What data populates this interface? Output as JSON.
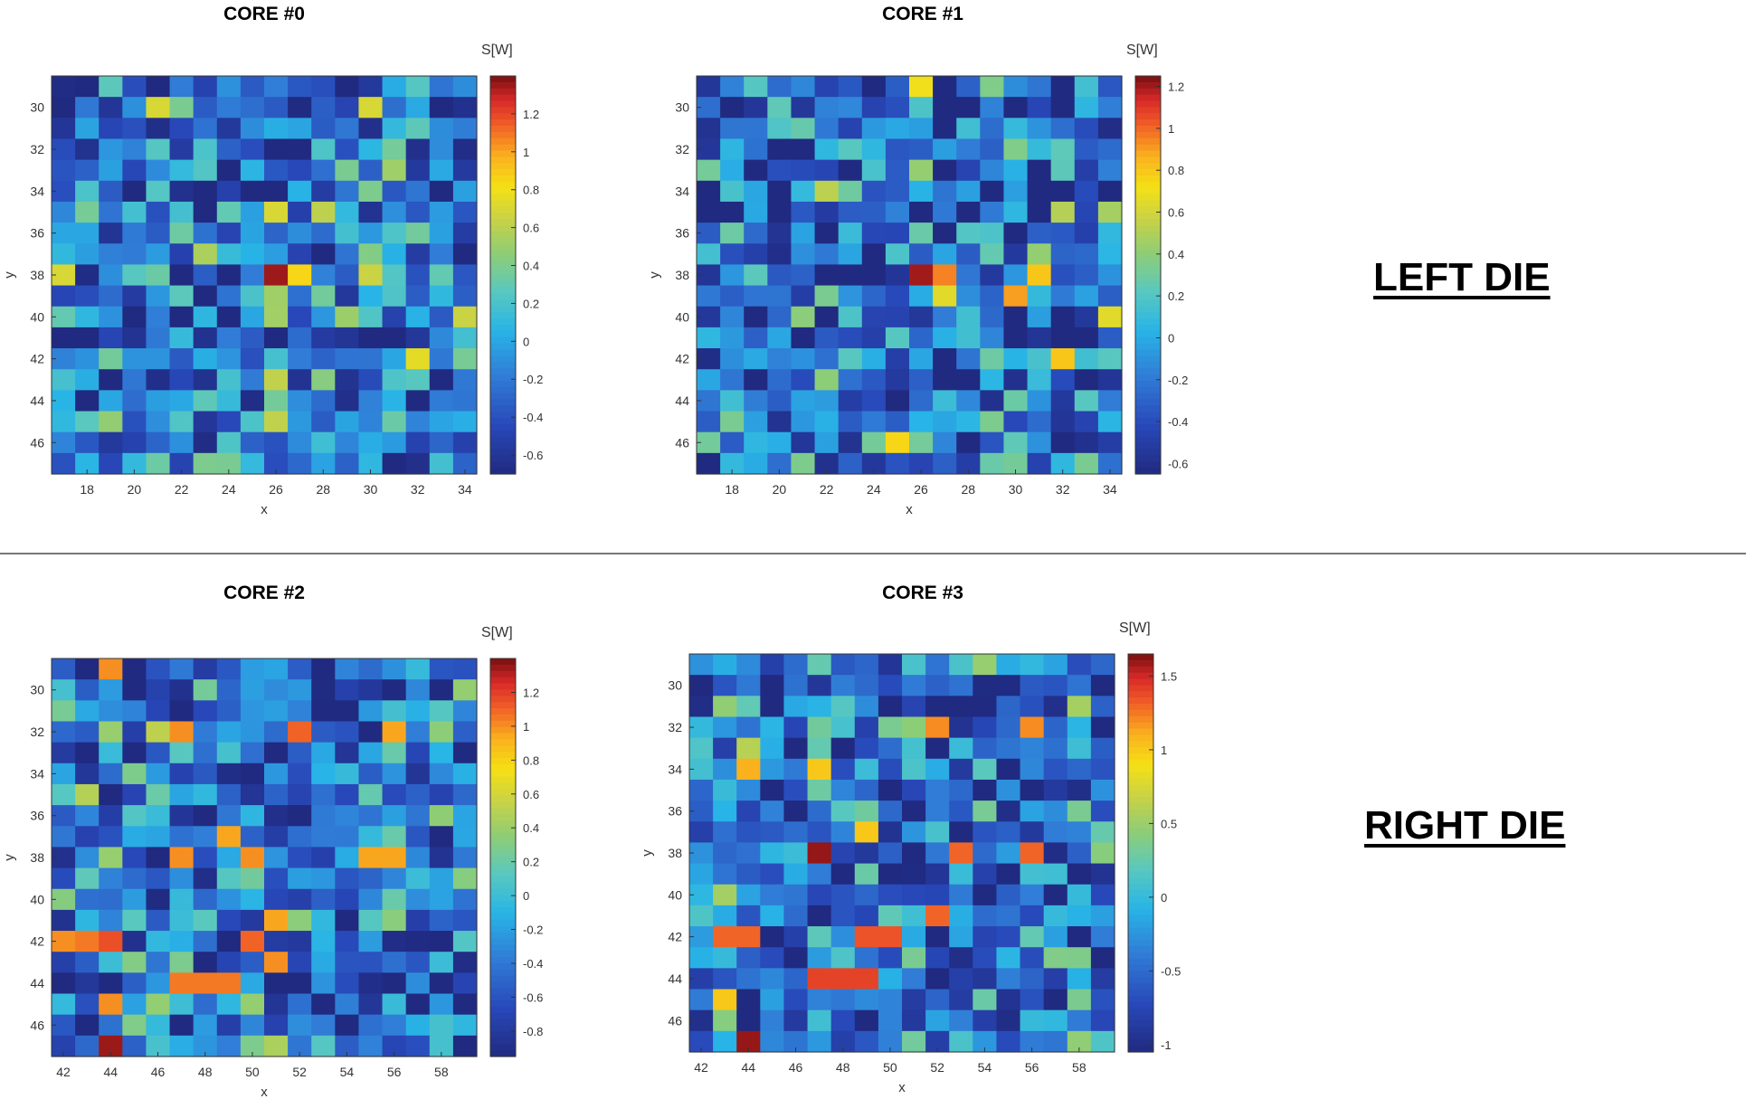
{
  "figure": {
    "sections": [
      {
        "label": "LEFT DIE",
        "cores": [
          "CORE #0",
          "CORE #1"
        ]
      },
      {
        "label": "RIGHT DIE",
        "cores": [
          "CORE #2",
          "CORE #3"
        ]
      }
    ]
  },
  "chart_data": [
    {
      "type": "heatmap",
      "title": "CORE #0",
      "xlabel": "x",
      "ylabel": "y",
      "colorbar_label": "S[W]",
      "x_range": [
        16.5,
        34.5
      ],
      "y_range": [
        28.5,
        47.5
      ],
      "xticks": [
        18,
        20,
        22,
        24,
        26,
        28,
        30,
        32,
        34
      ],
      "yticks": [
        30,
        32,
        34,
        36,
        38,
        40,
        42,
        44,
        46
      ],
      "clim": [
        -0.7,
        1.4
      ],
      "cbar_ticks": [
        -0.6,
        -0.4,
        -0.2,
        0,
        0.2,
        0.4,
        0.6,
        0.8,
        1,
        1.2
      ],
      "cbar_tick_labels": [
        "-0.6",
        "-0.4",
        "-0.2",
        "0",
        "0.2",
        "0.4",
        "0.6",
        "0.8",
        "1",
        "1.2"
      ],
      "seed": 11,
      "hotspots": [
        [
          26,
          38,
          1.35
        ],
        [
          27,
          38,
          0.85
        ],
        [
          17,
          38,
          0.7
        ],
        [
          32,
          42,
          0.75
        ],
        [
          26,
          35,
          0.7
        ],
        [
          30,
          30,
          0.7
        ],
        [
          21,
          30,
          0.7
        ],
        [
          34,
          40,
          0.65
        ],
        [
          30,
          38,
          0.65
        ],
        [
          19,
          30,
          -0.6
        ],
        [
          29,
          44,
          -0.65
        ]
      ]
    },
    {
      "type": "heatmap",
      "title": "CORE #1",
      "xlabel": "x",
      "ylabel": "y",
      "colorbar_label": "S[W]",
      "x_range": [
        16.5,
        34.5
      ],
      "y_range": [
        28.5,
        47.5
      ],
      "xticks": [
        18,
        20,
        22,
        24,
        26,
        28,
        30,
        32,
        34
      ],
      "yticks": [
        30,
        32,
        34,
        36,
        38,
        40,
        42,
        44,
        46
      ],
      "clim": [
        -0.65,
        1.25
      ],
      "cbar_ticks": [
        -0.6,
        -0.4,
        -0.2,
        0,
        0.2,
        0.4,
        0.6,
        0.8,
        1,
        1.2
      ],
      "cbar_tick_labels": [
        "-0.6",
        "-0.4",
        "-0.2",
        "0",
        "0.2",
        "0.4",
        "0.6",
        "0.8",
        "1",
        "1.2"
      ],
      "seed": 23,
      "hotspots": [
        [
          26,
          38,
          1.2
        ],
        [
          27,
          38,
          0.95
        ],
        [
          30,
          39,
          0.9
        ],
        [
          31,
          38,
          0.8
        ],
        [
          26,
          29,
          0.7
        ],
        [
          32,
          42,
          0.8
        ],
        [
          25,
          46,
          0.75
        ],
        [
          27,
          39,
          0.65
        ],
        [
          34,
          40,
          0.65
        ],
        [
          19,
          30,
          -0.55
        ],
        [
          29,
          44,
          -0.6
        ],
        [
          17,
          32,
          -0.55
        ]
      ]
    },
    {
      "type": "heatmap",
      "title": "CORE #2",
      "xlabel": "x",
      "ylabel": "y",
      "colorbar_label": "S[W]",
      "x_range": [
        41.5,
        59.5
      ],
      "y_range": [
        28.5,
        47.5
      ],
      "xticks": [
        42,
        44,
        46,
        48,
        50,
        52,
        54,
        56,
        58
      ],
      "yticks": [
        30,
        32,
        34,
        36,
        38,
        40,
        42,
        44,
        46
      ],
      "clim": [
        -0.95,
        1.4
      ],
      "cbar_ticks": [
        -0.8,
        -0.6,
        -0.4,
        -0.2,
        0,
        0.2,
        0.4,
        0.6,
        0.8,
        1,
        1.2
      ],
      "cbar_tick_labels": [
        "-0.8",
        "-0.6",
        "-0.4",
        "-0.2",
        "0",
        "0.2",
        "0.4",
        "0.6",
        "0.8",
        "1",
        "1.2"
      ],
      "seed": 37,
      "hotspots": [
        [
          44,
          47,
          1.35
        ],
        [
          44,
          29,
          1.0
        ],
        [
          44,
          45,
          1.0
        ],
        [
          42,
          42,
          1.0
        ],
        [
          43,
          42,
          1.05
        ],
        [
          44,
          42,
          1.15
        ],
        [
          47,
          44,
          1.05
        ],
        [
          48,
          44,
          1.05
        ],
        [
          49,
          44,
          1.05
        ],
        [
          50,
          42,
          1.1
        ],
        [
          47,
          32,
          1.0
        ],
        [
          52,
          32,
          1.1
        ],
        [
          56,
          32,
          0.95
        ],
        [
          47,
          38,
          1.0
        ],
        [
          50,
          38,
          1.0
        ],
        [
          55,
          38,
          0.95
        ],
        [
          56,
          38,
          0.95
        ],
        [
          51,
          41,
          0.95
        ],
        [
          51,
          43,
          1.0
        ],
        [
          52,
          43,
          0.95
        ],
        [
          49,
          37,
          0.95
        ],
        [
          55,
          44,
          -0.9
        ],
        [
          52,
          43,
          -0.7
        ]
      ]
    },
    {
      "type": "heatmap",
      "title": "CORE #3",
      "xlabel": "x",
      "ylabel": "y",
      "colorbar_label": "S[W]",
      "x_range": [
        41.5,
        59.5
      ],
      "y_range": [
        28.5,
        47.5
      ],
      "xticks": [
        42,
        44,
        46,
        48,
        50,
        52,
        54,
        56,
        58
      ],
      "yticks": [
        30,
        32,
        34,
        36,
        38,
        40,
        42,
        44,
        46
      ],
      "clim": [
        -1.05,
        1.65
      ],
      "cbar_ticks": [
        -1,
        -0.5,
        0,
        0.5,
        1,
        1.5
      ],
      "cbar_tick_labels": [
        "-1",
        "-0.5",
        "0",
        "0.5",
        "1",
        "1.5"
      ],
      "seed": 51,
      "hotspots": [
        [
          47,
          38,
          1.6
        ],
        [
          44,
          47,
          1.6
        ],
        [
          47,
          44,
          1.4
        ],
        [
          48,
          44,
          1.4
        ],
        [
          49,
          44,
          1.4
        ],
        [
          43,
          42,
          1.3
        ],
        [
          44,
          42,
          1.3
        ],
        [
          49,
          42,
          1.35
        ],
        [
          50,
          42,
          1.35
        ],
        [
          52,
          41,
          1.3
        ],
        [
          56,
          38,
          1.3
        ],
        [
          56,
          32,
          1.2
        ],
        [
          53,
          38,
          1.3
        ],
        [
          52,
          32,
          1.2
        ],
        [
          47,
          34,
          1.0
        ],
        [
          44,
          34,
          1.1
        ],
        [
          49,
          37,
          1.0
        ],
        [
          43,
          45,
          1.0
        ],
        [
          53,
          43,
          -1.0
        ],
        [
          55,
          45,
          -0.95
        ],
        [
          52,
          43,
          -0.75
        ]
      ]
    }
  ]
}
